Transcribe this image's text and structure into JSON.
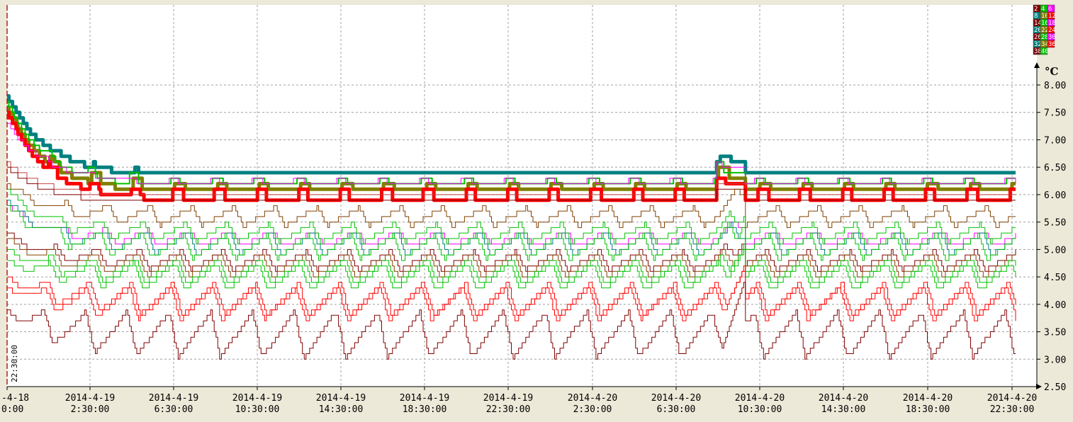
{
  "chart_data": {
    "type": "line",
    "unit": "°C",
    "ylim": [
      2.5,
      8.0
    ],
    "y_ticks": [
      "2.50",
      "3.00",
      "3.50",
      "4.00",
      "4.50",
      "5.00",
      "5.50",
      "6.00",
      "6.50",
      "7.00",
      "7.50",
      "8.00"
    ],
    "x_ticks": [
      {
        "date": "-4-18",
        "time": "0:00"
      },
      {
        "date": "2014-4-19",
        "time": "2:30:00"
      },
      {
        "date": "2014-4-19",
        "time": "6:30:00"
      },
      {
        "date": "2014-4-19",
        "time": "10:30:00"
      },
      {
        "date": "2014-4-19",
        "time": "14:30:00"
      },
      {
        "date": "2014-4-19",
        "time": "18:30:00"
      },
      {
        "date": "2014-4-19",
        "time": "22:30:00"
      },
      {
        "date": "2014-4-20",
        "time": "2:30:00"
      },
      {
        "date": "2014-4-20",
        "time": "6:30:00"
      },
      {
        "date": "2014-4-20",
        "time": "10:30:00"
      },
      {
        "date": "2014-4-20",
        "time": "14:30:00"
      },
      {
        "date": "2014-4-20",
        "time": "18:30:00"
      },
      {
        "date": "2014-4-20",
        "time": "22:30:00"
      }
    ],
    "cursor_label": "22:30:00",
    "x_start": "2014-04-18 00:00",
    "x_end": "2014-04-20 23:30",
    "grid": true,
    "legend_position": "top-right",
    "legend_rows": [
      [
        {
          "label": "2",
          "color": "#800000"
        },
        {
          "label": "4",
          "color": "#00c000"
        },
        {
          "label": "6",
          "color": "#ff00ff"
        }
      ],
      [
        {
          "label": "8",
          "color": "#008080"
        },
        {
          "label": "10",
          "color": "#808000"
        },
        {
          "label": "12",
          "color": "#ff0000"
        }
      ],
      [
        {
          "label": "14",
          "color": "#800000"
        },
        {
          "label": "16",
          "color": "#00c000"
        },
        {
          "label": "18",
          "color": "#ff00ff"
        }
      ],
      [
        {
          "label": "20",
          "color": "#008080"
        },
        {
          "label": "22",
          "color": "#808000"
        },
        {
          "label": "24",
          "color": "#ff0000"
        }
      ],
      [
        {
          "label": "26",
          "color": "#800000"
        },
        {
          "label": "28",
          "color": "#00c000"
        },
        {
          "label": "30",
          "color": "#ff00ff"
        }
      ],
      [
        {
          "label": "32",
          "color": "#008080"
        },
        {
          "label": "34",
          "color": "#808000"
        },
        {
          "label": "36",
          "color": "#ff0000"
        }
      ],
      [
        {
          "label": "38",
          "color": "#800000"
        },
        {
          "label": "40",
          "color": "#00c000"
        }
      ]
    ],
    "series": [
      {
        "color": "#008080",
        "width": 5,
        "start": 7.8,
        "settle": 6.35,
        "amp": 0.1,
        "peak": 0.0,
        "sawtooth": false,
        "bump": 0.1
      },
      {
        "color": "#808000",
        "width": 5,
        "start": 7.6,
        "settle": 6.05,
        "amp": 0.3,
        "peak": 0.0,
        "sawtooth": false,
        "bump": 0.35
      },
      {
        "color": "#ff0000",
        "width": 5,
        "start": 7.5,
        "settle": 5.9,
        "amp": 0.2,
        "peak": 0.0,
        "sawtooth": false,
        "bump": 0.35
      },
      {
        "color": "#00c000",
        "width": 2,
        "start": 7.7,
        "settle": 6.15,
        "amp": 0.3,
        "peak": 0.0,
        "sawtooth": false,
        "bump": 0.3
      },
      {
        "color": "#ff00ff",
        "width": 1,
        "start": 7.3,
        "settle": 6.2,
        "amp": 0.25,
        "peak": 0.0,
        "sawtooth": false,
        "bump": 0.2
      },
      {
        "color": "#c04040",
        "width": 1,
        "start": 6.6,
        "settle": 5.95,
        "amp": 0.05,
        "peak": 0.0,
        "sawtooth": false,
        "bump": 0.0
      },
      {
        "color": "#800000",
        "width": 1,
        "start": 6.5,
        "settle": 5.85,
        "amp": 0.05,
        "peak": 0.0,
        "sawtooth": false,
        "bump": 0.0
      },
      {
        "color": "#804000",
        "width": 1,
        "start": 6.2,
        "settle": 5.6,
        "amp": 0.35,
        "peak": 0.0,
        "sawtooth": true,
        "bump": 0.5
      },
      {
        "color": "#ff00ff",
        "width": 1,
        "start": 5.8,
        "settle": 5.2,
        "amp": 0.3,
        "peak": 0.0,
        "sawtooth": true,
        "bump": 0.3
      },
      {
        "color": "#008080",
        "width": 1,
        "start": 5.9,
        "settle": 5.1,
        "amp": 0.4,
        "peak": 0.0,
        "sawtooth": true,
        "bump": 0.3
      },
      {
        "color": "#00c000",
        "width": 1,
        "start": 6.1,
        "settle": 5.3,
        "amp": 0.35,
        "peak": 0.0,
        "sawtooth": true,
        "bump": 0.4
      },
      {
        "color": "#00c000",
        "width": 1,
        "start": 5.8,
        "settle": 5.05,
        "amp": 0.45,
        "peak": 0.0,
        "sawtooth": true,
        "bump": 0.5
      },
      {
        "color": "#800000",
        "width": 1,
        "start": 5.3,
        "settle": 4.8,
        "amp": 0.35,
        "peak": 0.0,
        "sawtooth": true,
        "bump": 0.4
      },
      {
        "color": "#804000",
        "width": 1,
        "start": 5.2,
        "settle": 4.7,
        "amp": 0.4,
        "peak": 0.0,
        "sawtooth": true,
        "bump": 0.4
      },
      {
        "color": "#00c000",
        "width": 1,
        "start": 5.0,
        "settle": 4.6,
        "amp": 0.45,
        "peak": 0.0,
        "sawtooth": true,
        "bump": 0.5
      },
      {
        "color": "#00c000",
        "width": 1,
        "start": 4.8,
        "settle": 4.5,
        "amp": 0.5,
        "peak": 0.0,
        "sawtooth": true,
        "bump": 0.5
      },
      {
        "color": "#ff0000",
        "width": 1,
        "start": 4.5,
        "settle": 4.1,
        "amp": 0.6,
        "peak": 0.0,
        "sawtooth": true,
        "bump": 0.5
      },
      {
        "color": "#ff0000",
        "width": 1,
        "start": 4.3,
        "settle": 4.0,
        "amp": 0.6,
        "peak": 0.0,
        "sawtooth": true,
        "bump": 0.6
      },
      {
        "color": "#800000",
        "width": 1,
        "start": 3.9,
        "settle": 3.45,
        "amp": 0.85,
        "peak": 0.0,
        "sawtooth": true,
        "bump": 0.8
      }
    ]
  }
}
